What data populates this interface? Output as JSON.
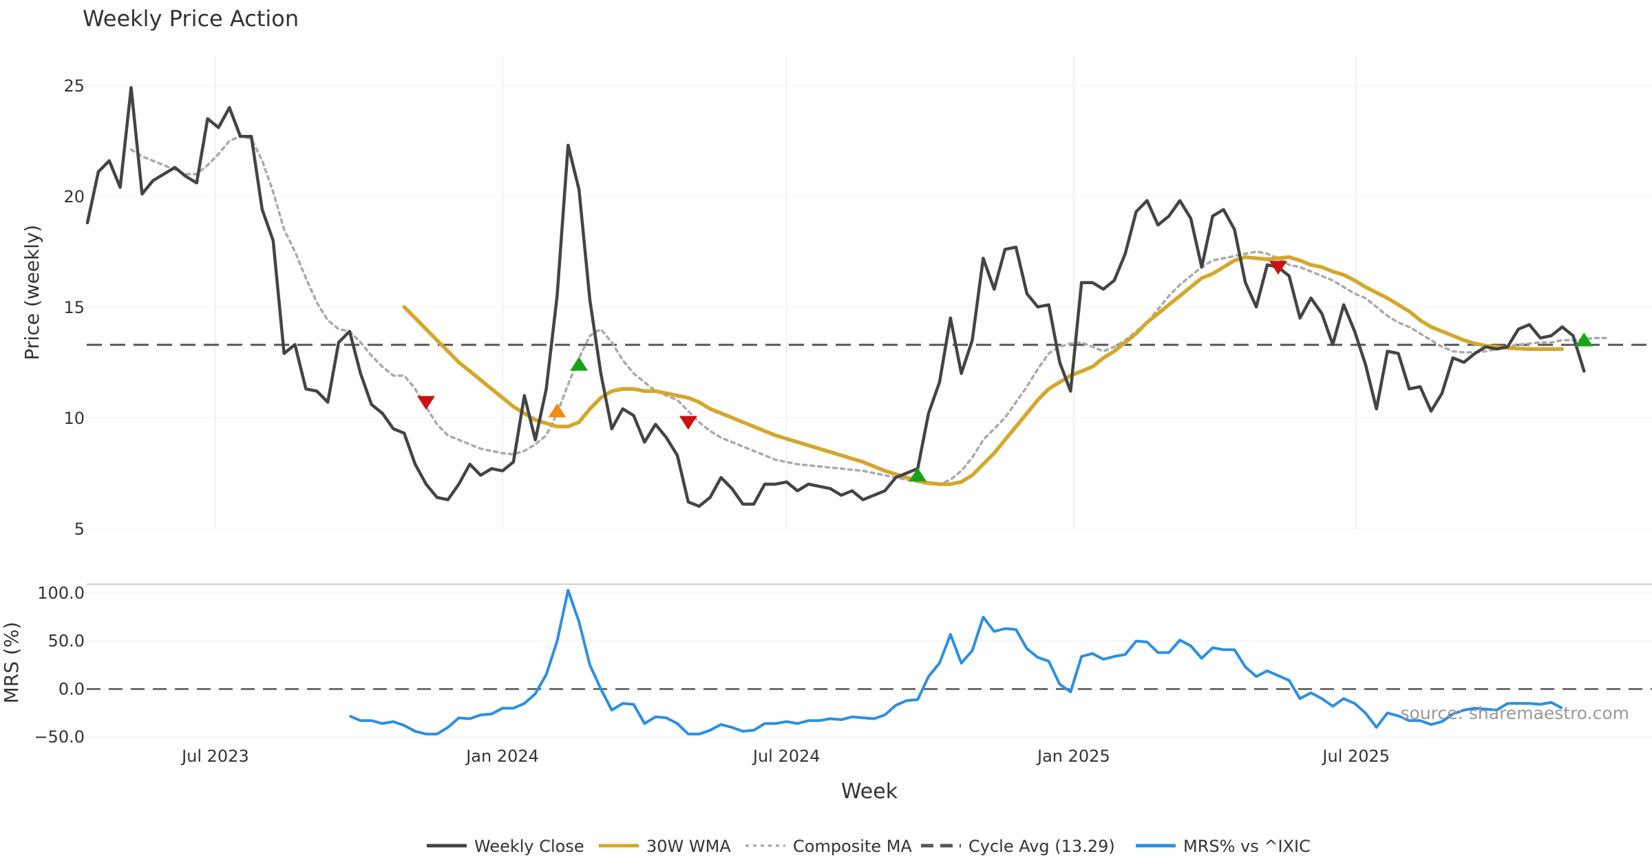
{
  "chart_data": {
    "type": "line",
    "title": "Weekly Price Action",
    "source": "source: sharemaestro.com",
    "xlabel": "Week",
    "x_start": "2023-04-10",
    "x_step_days": 7,
    "x_ticks": [
      {
        "date": "2023-07-01",
        "label": "Jul 2023"
      },
      {
        "date": "2024-01-01",
        "label": "Jan 2024"
      },
      {
        "date": "2024-07-01",
        "label": "Jul 2024"
      },
      {
        "date": "2025-01-01",
        "label": "Jan 2025"
      },
      {
        "date": "2025-07-01",
        "label": "Jul 2025"
      }
    ],
    "price_panel": {
      "ylabel": "Price (weekly)",
      "ylim": [
        5,
        26
      ],
      "yticks": [
        5,
        10,
        15,
        20,
        25
      ],
      "cycle_avg": 13.29,
      "series": [
        {
          "name": "Weekly Close",
          "color": "#444444",
          "start_index": 0,
          "values": [
            18.8,
            21.1,
            21.6,
            20.4,
            24.9,
            20.1,
            20.7,
            21.0,
            21.3,
            20.9,
            20.6,
            23.5,
            23.1,
            24.0,
            22.7,
            22.7,
            19.4,
            18.0,
            12.9,
            13.3,
            11.3,
            11.2,
            10.7,
            13.4,
            13.9,
            12.0,
            10.6,
            10.2,
            9.5,
            9.3,
            7.9,
            7.0,
            6.4,
            6.3,
            7.0,
            7.9,
            7.4,
            7.7,
            7.6,
            8.0,
            11.0,
            9.0,
            11.3,
            15.5,
            22.3,
            20.3,
            15.3,
            12.0,
            9.5,
            10.4,
            10.1,
            8.9,
            9.7,
            9.1,
            8.3,
            6.2,
            6.0,
            6.4,
            7.3,
            6.8,
            6.1,
            6.1,
            7.0,
            7.0,
            7.1,
            6.7,
            7.0,
            6.9,
            6.8,
            6.5,
            6.7,
            6.3,
            6.5,
            6.7,
            7.3,
            7.5,
            7.7,
            10.2,
            11.6,
            14.5,
            12.0,
            13.5,
            17.2,
            15.8,
            17.6,
            17.7,
            15.6,
            15.0,
            15.1,
            12.5,
            11.2,
            16.1,
            16.1,
            15.8,
            16.2,
            17.4,
            19.3,
            19.8,
            18.7,
            19.1,
            19.8,
            19.0,
            16.8,
            19.1,
            19.4,
            18.5,
            16.1,
            15.0,
            16.9,
            16.8,
            16.4,
            14.5,
            15.4,
            14.7,
            13.3,
            15.1,
            13.9,
            12.4,
            10.4,
            13.0,
            12.9,
            11.3,
            11.4,
            10.3,
            11.1,
            12.7,
            12.5,
            12.9,
            13.2,
            13.1,
            13.2,
            14.0,
            14.2,
            13.6,
            13.7,
            14.1,
            13.7,
            12.1
          ]
        },
        {
          "name": "30W WMA",
          "color": "#d4a72c",
          "start_index": 29,
          "values": [
            15.0,
            14.5,
            14.0,
            13.5,
            13.0,
            12.5,
            12.1,
            11.7,
            11.3,
            10.9,
            10.5,
            10.2,
            9.9,
            9.75,
            9.6,
            9.6,
            9.8,
            10.4,
            10.9,
            11.2,
            11.3,
            11.3,
            11.2,
            11.2,
            11.1,
            11.0,
            10.9,
            10.7,
            10.4,
            10.2,
            10.0,
            9.8,
            9.6,
            9.4,
            9.2,
            9.05,
            8.9,
            8.75,
            8.6,
            8.45,
            8.3,
            8.15,
            8.0,
            7.8,
            7.6,
            7.45,
            7.3,
            7.15,
            7.05,
            7.0,
            7.0,
            7.1,
            7.4,
            7.9,
            8.4,
            9.0,
            9.6,
            10.2,
            10.8,
            11.3,
            11.6,
            11.9,
            12.1,
            12.3,
            12.7,
            13.0,
            13.4,
            13.8,
            14.3,
            14.7,
            15.1,
            15.5,
            15.9,
            16.3,
            16.5,
            16.8,
            17.1,
            17.25,
            17.2,
            17.15,
            17.2,
            17.25,
            17.1,
            16.9,
            16.8,
            16.6,
            16.45,
            16.2,
            15.9,
            15.65,
            15.4,
            15.1,
            14.8,
            14.4,
            14.1,
            13.9,
            13.7,
            13.5,
            13.35,
            13.25,
            13.2,
            13.15,
            13.12,
            13.1,
            13.1,
            13.1,
            13.1
          ]
        },
        {
          "name": "Composite MA",
          "color": "#aaaaaa",
          "start_index": 4,
          "values": [
            22.1,
            21.8,
            21.6,
            21.4,
            21.2,
            21.0,
            21.0,
            21.4,
            21.9,
            22.5,
            22.7,
            22.6,
            21.6,
            20.2,
            18.5,
            17.5,
            16.3,
            15.2,
            14.4,
            14.0,
            13.9,
            13.4,
            12.8,
            12.3,
            11.9,
            11.9,
            11.3,
            10.5,
            9.7,
            9.2,
            9.0,
            8.8,
            8.6,
            8.5,
            8.4,
            8.35,
            8.5,
            8.8,
            9.2,
            10.2,
            11.5,
            12.7,
            13.7,
            14.0,
            13.4,
            12.6,
            12.0,
            11.6,
            11.2,
            11.0,
            10.8,
            10.3,
            9.8,
            9.4,
            9.1,
            8.9,
            8.7,
            8.5,
            8.3,
            8.1,
            8.0,
            7.9,
            7.85,
            7.8,
            7.75,
            7.7,
            7.65,
            7.6,
            7.5,
            7.4,
            7.3,
            7.2,
            7.1,
            7.0,
            7.0,
            7.2,
            7.6,
            8.2,
            9.0,
            9.5,
            10.0,
            10.7,
            11.4,
            12.2,
            12.9,
            13.2,
            13.35,
            13.4,
            13.2,
            13.0,
            13.2,
            13.5,
            13.9,
            14.3,
            14.9,
            15.5,
            16.0,
            16.4,
            16.8,
            17.1,
            17.2,
            17.3,
            17.4,
            17.5,
            17.4,
            17.2,
            16.9,
            16.8,
            16.6,
            16.4,
            16.2,
            15.9,
            15.6,
            15.4,
            15.0,
            14.6,
            14.3,
            14.1,
            13.8,
            13.5,
            13.2,
            13.0,
            12.95,
            12.95,
            13.0,
            13.1,
            13.2,
            13.3,
            13.35,
            13.4,
            13.4,
            13.5,
            13.5,
            13.55,
            13.6,
            13.6
          ]
        }
      ],
      "markers": [
        {
          "index": 31,
          "value": 10.7,
          "kind": "sell",
          "color": "#cc1111"
        },
        {
          "index": 43,
          "value": 10.3,
          "kind": "buy",
          "color": "#f28c0f"
        },
        {
          "index": 45,
          "value": 12.4,
          "kind": "buy",
          "color": "#18a318"
        },
        {
          "index": 55,
          "value": 9.8,
          "kind": "sell",
          "color": "#cc1111"
        },
        {
          "index": 76,
          "value": 7.4,
          "kind": "buy",
          "color": "#18a318"
        },
        {
          "index": 109,
          "value": 16.8,
          "kind": "sell",
          "color": "#cc1111"
        },
        {
          "index": 137,
          "value": 13.5,
          "kind": "buy",
          "color": "#18a318"
        }
      ]
    },
    "mrs_panel": {
      "ylabel": "MRS (%)",
      "ylim": [
        -55,
        105
      ],
      "yticks": [
        -50.0,
        0.0,
        50.0,
        100.0
      ],
      "ytick_labels": [
        "−50.0",
        "0.0",
        "50.0",
        "100.0"
      ],
      "series": {
        "name": "MRS% vs ^IXIC",
        "color": "#2b8fe4",
        "start_index": 24,
        "values": [
          -28,
          -33,
          -33,
          -36,
          -34,
          -38,
          -44,
          -47,
          -47,
          -40,
          -30,
          -31,
          -27,
          -26,
          -20,
          -20,
          -15,
          -5,
          15,
          50,
          103,
          70,
          25,
          0,
          -22,
          -15,
          -16,
          -36,
          -29,
          -30,
          -36,
          -47,
          -47,
          -43,
          -37,
          -40,
          -44,
          -43,
          -36,
          -36,
          -34,
          -36,
          -33,
          -33,
          -31,
          -32,
          -29,
          -30,
          -31,
          -27,
          -17,
          -12,
          -11,
          13,
          27,
          57,
          27,
          40,
          75,
          60,
          63,
          62,
          42,
          33,
          29,
          5,
          -3,
          34,
          37,
          31,
          34,
          36,
          50,
          49,
          38,
          38,
          51,
          45,
          32,
          43,
          41,
          41,
          23,
          13,
          19,
          14,
          9,
          -10,
          -4,
          -10,
          -18,
          -10,
          -15,
          -25,
          -40,
          -25,
          -28,
          -33,
          -33,
          -37,
          -34,
          -26,
          -22,
          -20,
          -21,
          -22,
          -15,
          -15,
          -15,
          -16,
          -14,
          -20
        ]
      }
    },
    "legend": [
      {
        "label": "Weekly Close",
        "color": "#444444",
        "style": "solid"
      },
      {
        "label": "30W WMA",
        "color": "#d4a72c",
        "style": "solid"
      },
      {
        "label": "Composite MA",
        "color": "#aaaaaa",
        "style": "dotted"
      },
      {
        "label": "Cycle Avg (13.29)",
        "color": "#555555",
        "style": "dashed"
      },
      {
        "label": "MRS% vs ^IXIC",
        "color": "#2b8fe4",
        "style": "solid"
      }
    ]
  }
}
